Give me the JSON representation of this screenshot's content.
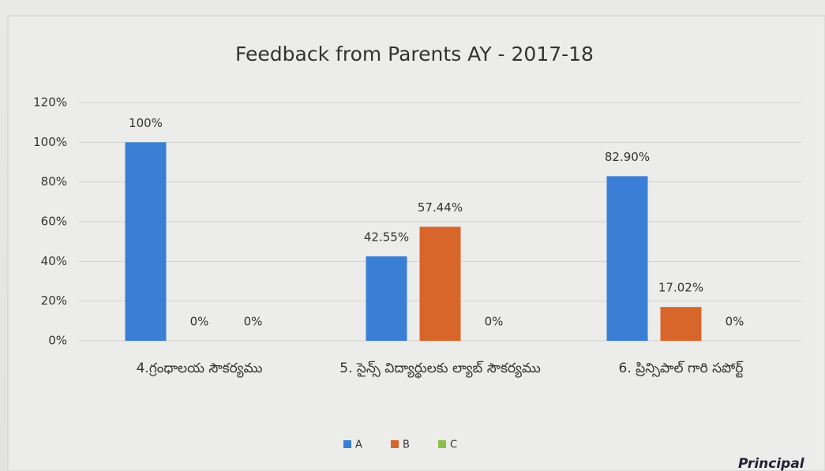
{
  "chart_data": {
    "type": "bar",
    "title": "Feedback from Parents AY - 2017-18",
    "categories": [
      "4.గ్రంధాలయ సౌకర్యము",
      "5. సైన్స్ విద్యార్థులకు ల్యాబ్ సౌకర్యము",
      "6. ప్రిన్సిపాల్ గారి సపోర్ట్"
    ],
    "series": [
      {
        "name": "A",
        "color": "#3a7fd5",
        "values": [
          100,
          42.55,
          82.9
        ],
        "value_labels": [
          "100%",
          "42.55%",
          "82.90%"
        ]
      },
      {
        "name": "B",
        "color": "#d8662b",
        "values": [
          0,
          57.44,
          17.02
        ],
        "value_labels": [
          "0%",
          "57.44%",
          "17.02%"
        ]
      },
      {
        "name": "C",
        "color": "#8cc04a",
        "values": [
          0,
          0,
          0
        ],
        "value_labels": [
          "0%",
          "0%",
          "0%"
        ]
      }
    ],
    "ylim": [
      0,
      120
    ],
    "yticks": [
      {
        "value": 0,
        "label": "0%"
      },
      {
        "value": 20,
        "label": "20%"
      },
      {
        "value": 40,
        "label": "40%"
      },
      {
        "value": 60,
        "label": "60%"
      },
      {
        "value": 80,
        "label": "80%"
      },
      {
        "value": 100,
        "label": "100%"
      },
      {
        "value": 120,
        "label": "120%"
      }
    ],
    "grid": true,
    "legend": "bottom",
    "annotations": [
      "Principal"
    ]
  }
}
